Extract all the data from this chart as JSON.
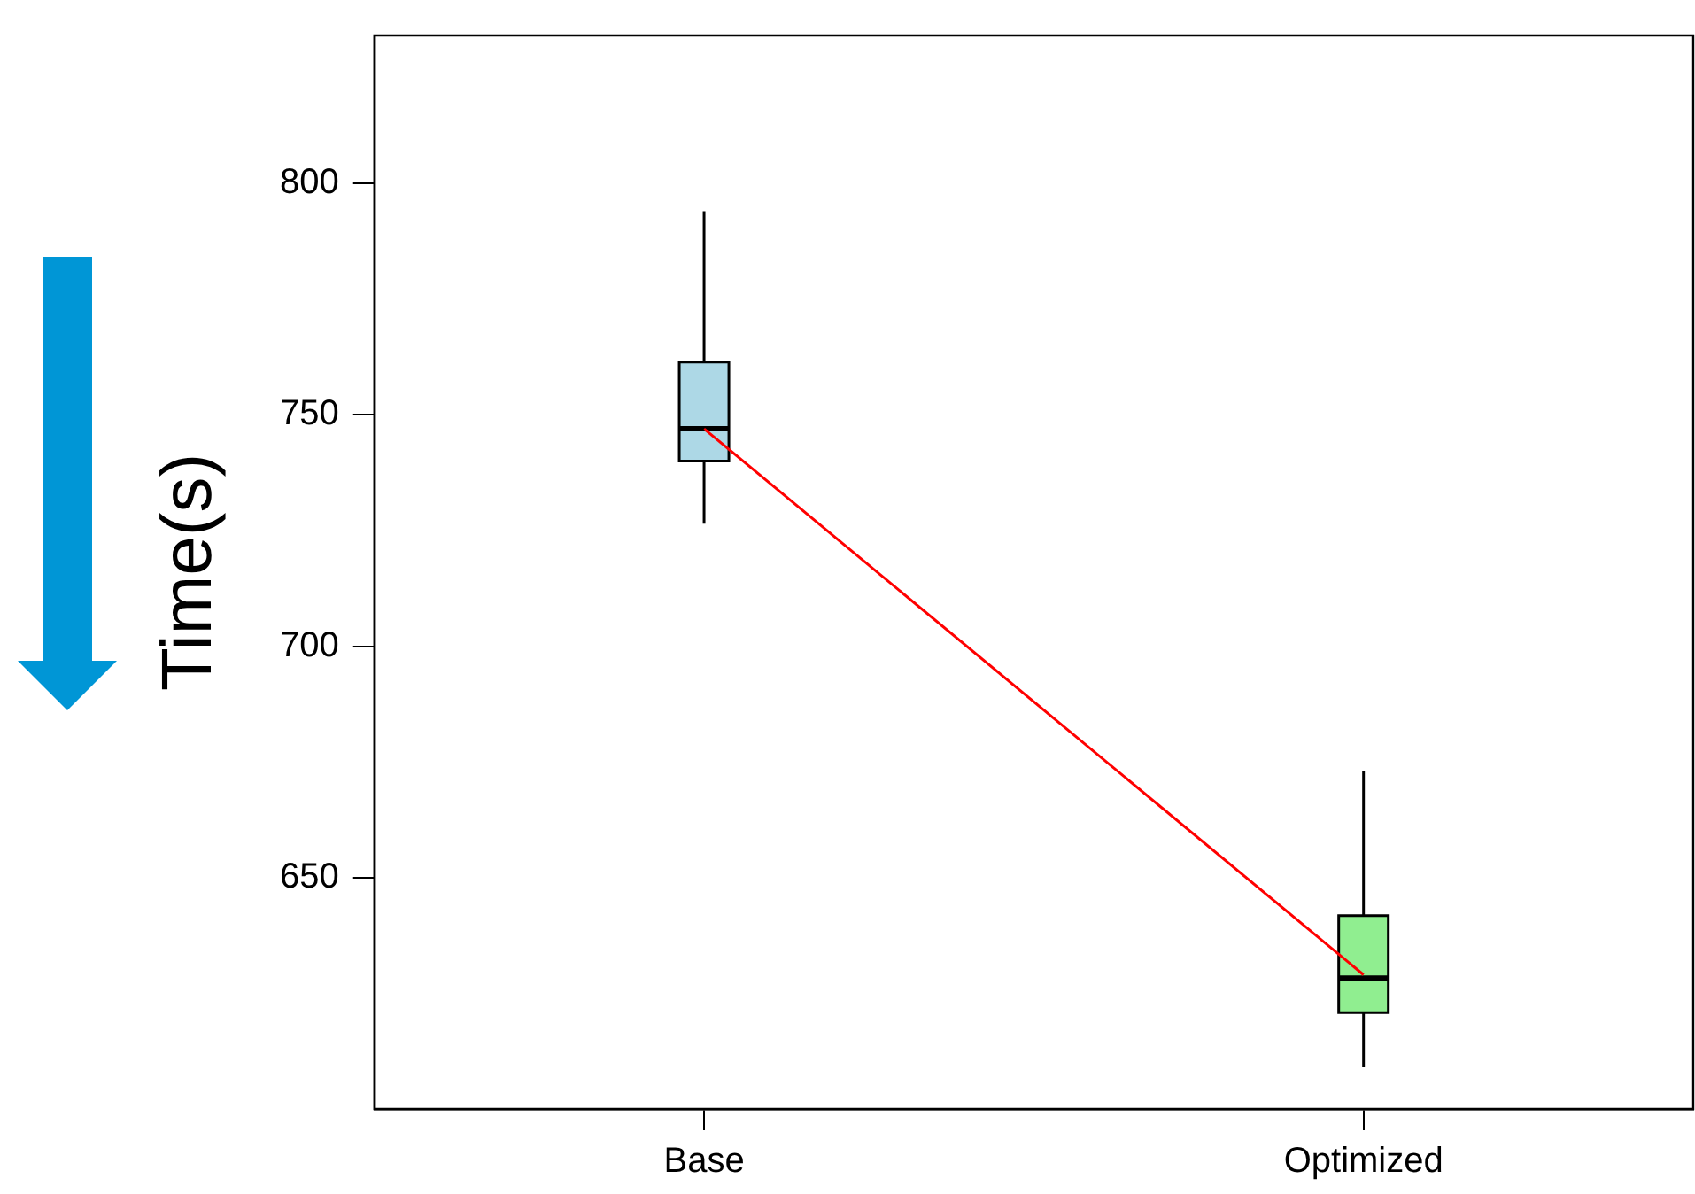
{
  "chart_data": {
    "type": "box",
    "ylabel": "Time(s)",
    "categories": [
      "Base",
      "Optimized"
    ],
    "boxes": [
      {
        "low": 726.5,
        "q1": 740,
        "median": 747,
        "q3": 761.4,
        "high": 794
      },
      {
        "low": 609,
        "q1": 620.8,
        "median": 628.3,
        "q3": 641.8,
        "high": 673
      }
    ],
    "colors": [
      "#add8e6",
      "#90ee90"
    ],
    "series": [
      {
        "type": "line",
        "color": "#ff0000",
        "values": [
          747,
          629
        ]
      }
    ],
    "ylim": [
      600,
      832
    ],
    "yticks": [
      650,
      700,
      750,
      800
    ],
    "grid": false,
    "legend": false
  }
}
